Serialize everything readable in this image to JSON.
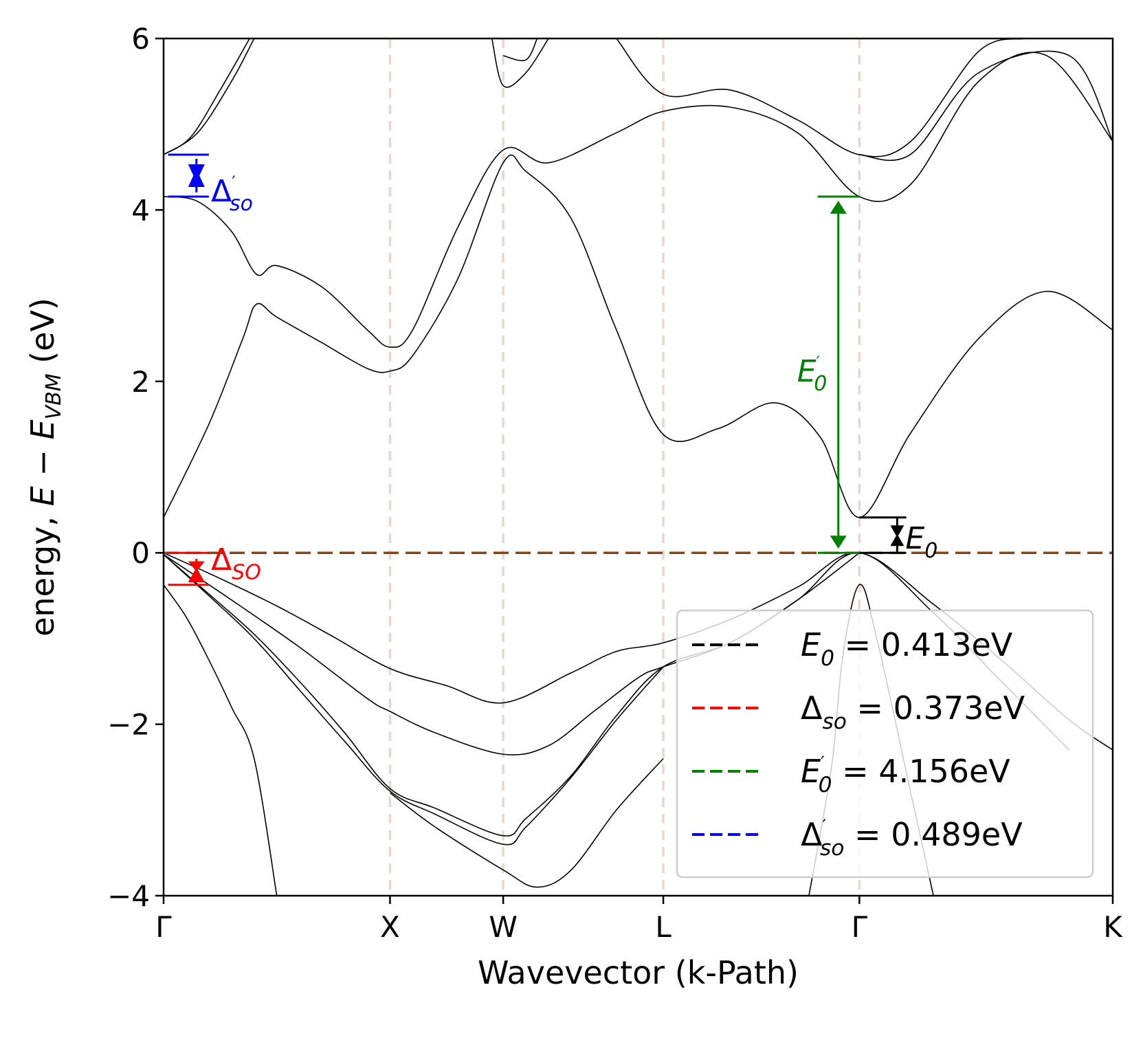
{
  "chart_data": {
    "type": "line",
    "title": "",
    "xlabel": "Wavevector (k-Path)",
    "ylabel": "energy, E − E_VBM (eV)",
    "ylabel_parts": {
      "prefix": "energy, ",
      "E": "E",
      "minus": " − ",
      "E2": "E",
      "sub": "VBM",
      "suffix": " (eV)"
    },
    "ylim": [
      -4,
      6
    ],
    "xlim": [
      0,
      4.192
    ],
    "yticks": [
      -4,
      -2,
      0,
      2,
      4,
      6
    ],
    "ytick_labels": [
      "−4",
      "−2",
      "0",
      "2",
      "4",
      "6"
    ],
    "kpoints": [
      {
        "label": "Γ",
        "x": 0.0
      },
      {
        "label": "X",
        "x": 1.0
      },
      {
        "label": "W",
        "x": 1.5
      },
      {
        "label": "L",
        "x": 2.207
      },
      {
        "label": "Γ",
        "x": 3.073
      },
      {
        "label": "K",
        "x": 4.192
      }
    ],
    "grid": false,
    "legend_placement": "lower-right",
    "legend": [
      {
        "symbol": "E",
        "sub": "0",
        "prime": false,
        "text": " = 0.413eV",
        "color": "#000000"
      },
      {
        "symbol": "Δ",
        "sub": "so",
        "prime": false,
        "text": " = 0.373eV",
        "color": "#ff0000"
      },
      {
        "symbol": "E",
        "sub": "0",
        "prime": true,
        "text": " = 4.156eV",
        "color": "#008000"
      },
      {
        "symbol": "Δ",
        "sub": "so",
        "prime": true,
        "text": " = 0.489eV",
        "color": "#0000ff"
      }
    ],
    "annotations": {
      "E0": {
        "symbol": "E",
        "sub": "0",
        "value": 0.413,
        "color": "#000000"
      },
      "delta_so": {
        "symbol": "Δ",
        "sub": "SO",
        "value": 0.373,
        "color": "#ff0000"
      },
      "E0_prime": {
        "symbol": "E",
        "sub": "0",
        "prime": "'",
        "value": 4.156,
        "color": "#008000"
      },
      "delta_so_prime": {
        "symbol": "Δ",
        "sub": "so",
        "prime": "'",
        "value": 0.489,
        "color": "#0000ff"
      }
    },
    "vbm_line": {
      "y": 0,
      "color": "#8b4513"
    },
    "kpoint_line_color": "#e8d7cf",
    "series": [
      {
        "values": [
          [
            0,
            0
          ],
          [
            0.25,
            -0.3
          ],
          [
            0.5,
            -0.62
          ],
          [
            0.75,
            -0.98
          ],
          [
            1,
            -1.35
          ],
          [
            1.25,
            -1.55
          ],
          [
            1.5,
            -1.75
          ],
          [
            1.8,
            -1.4
          ],
          [
            2.0,
            -1.15
          ],
          [
            2.207,
            -1.05
          ],
          [
            2.5,
            -0.78
          ],
          [
            2.8,
            -0.4
          ],
          [
            3.073,
            0
          ],
          [
            3.4,
            -0.6
          ],
          [
            3.7,
            -1.25
          ],
          [
            4.0,
            -1.95
          ],
          [
            4.192,
            -2.3
          ]
        ]
      },
      {
        "values": [
          [
            0,
            -0.02
          ],
          [
            0.3,
            -0.55
          ],
          [
            0.6,
            -1.1
          ],
          [
            0.9,
            -1.7
          ],
          [
            1.0,
            -1.85
          ],
          [
            1.2,
            -2.1
          ],
          [
            1.5,
            -2.35
          ],
          [
            1.7,
            -2.25
          ],
          [
            1.9,
            -1.85
          ],
          [
            2.1,
            -1.45
          ],
          [
            2.207,
            -1.33
          ],
          [
            2.5,
            -1.05
          ],
          [
            2.8,
            -0.55
          ],
          [
            3.073,
            0
          ],
          [
            3.4,
            -0.7
          ],
          [
            3.7,
            -1.5
          ],
          [
            4.0,
            -2.3
          ]
        ]
      },
      {
        "values": [
          [
            0,
            -0.02
          ],
          [
            0.2,
            -0.48
          ],
          [
            0.4,
            -0.95
          ],
          [
            0.6,
            -1.5
          ],
          [
            0.8,
            -2.1
          ],
          [
            1.0,
            -2.75
          ],
          [
            1.2,
            -2.98
          ],
          [
            1.5,
            -3.3
          ],
          [
            1.6,
            -3.1
          ],
          [
            1.8,
            -2.6
          ],
          [
            2.0,
            -1.9
          ],
          [
            2.207,
            -1.33
          ],
          [
            2.5,
            -1.05
          ],
          [
            2.8,
            -0.55
          ],
          [
            3.073,
            0
          ]
        ]
      },
      {
        "values": [
          [
            0,
            -0.02
          ],
          [
            0.2,
            -0.5
          ],
          [
            0.4,
            -1.0
          ],
          [
            0.6,
            -1.6
          ],
          [
            0.8,
            -2.2
          ],
          [
            1.0,
            -2.78
          ],
          [
            1.2,
            -3.05
          ],
          [
            1.5,
            -3.4
          ],
          [
            1.6,
            -3.2
          ],
          [
            1.8,
            -2.62
          ],
          [
            2.0,
            -1.95
          ],
          [
            2.207,
            -1.33
          ]
        ]
      },
      {
        "values": [
          [
            0,
            -0.373
          ],
          [
            0.1,
            -0.75
          ],
          [
            0.2,
            -1.25
          ],
          [
            0.3,
            -1.8
          ],
          [
            0.4,
            -2.4
          ],
          [
            0.5,
            -4.0
          ]
        ]
      },
      {
        "values": [
          [
            1.0,
            -2.8
          ],
          [
            1.2,
            -3.2
          ],
          [
            1.5,
            -3.7
          ],
          [
            1.65,
            -3.9
          ],
          [
            1.8,
            -3.7
          ],
          [
            2.0,
            -3.0
          ],
          [
            2.207,
            -2.4
          ]
        ]
      },
      {
        "values": [
          [
            2.85,
            -4.0
          ],
          [
            2.95,
            -2.5
          ],
          [
            3.0,
            -1.2
          ],
          [
            3.073,
            -0.373
          ],
          [
            3.15,
            -1.0
          ],
          [
            3.3,
            -2.8
          ],
          [
            3.4,
            -4.0
          ]
        ]
      },
      {
        "values": [
          [
            0,
            0.413
          ],
          [
            0.2,
            1.5
          ],
          [
            0.35,
            2.5
          ],
          [
            0.41,
            2.9
          ],
          [
            0.5,
            2.75
          ],
          [
            0.7,
            2.45
          ],
          [
            0.9,
            2.15
          ],
          [
            1.0,
            2.12
          ],
          [
            1.1,
            2.3
          ],
          [
            1.3,
            3.2
          ],
          [
            1.5,
            4.55
          ],
          [
            1.6,
            4.45
          ],
          [
            1.8,
            3.9
          ],
          [
            2.0,
            2.6
          ],
          [
            2.207,
            1.38
          ],
          [
            2.45,
            1.45
          ],
          [
            2.7,
            1.75
          ],
          [
            2.9,
            1.35
          ],
          [
            3.073,
            0.413
          ],
          [
            3.3,
            1.4
          ],
          [
            3.6,
            2.5
          ],
          [
            3.9,
            3.05
          ],
          [
            4.192,
            2.6
          ]
        ]
      },
      {
        "values": [
          [
            0,
            4.156
          ],
          [
            0.15,
            4.1
          ],
          [
            0.3,
            3.75
          ],
          [
            0.41,
            3.25
          ],
          [
            0.5,
            3.35
          ],
          [
            0.7,
            3.1
          ],
          [
            0.9,
            2.6
          ],
          [
            1.0,
            2.4
          ],
          [
            1.1,
            2.6
          ],
          [
            1.3,
            3.8
          ],
          [
            1.5,
            4.7
          ],
          [
            1.7,
            4.55
          ],
          [
            2.0,
            4.9
          ],
          [
            2.207,
            5.15
          ],
          [
            2.5,
            5.2
          ],
          [
            2.8,
            4.9
          ],
          [
            3.073,
            4.156
          ],
          [
            3.3,
            4.3
          ],
          [
            3.6,
            5.5
          ],
          [
            3.9,
            5.8
          ],
          [
            4.192,
            4.8
          ]
        ]
      },
      {
        "values": [
          [
            0,
            4.645
          ],
          [
            0.15,
            4.9
          ],
          [
            0.3,
            5.5
          ],
          [
            0.4,
            6.0
          ]
        ]
      },
      {
        "values": [
          [
            0,
            4.645
          ],
          [
            0.12,
            4.85
          ],
          [
            0.25,
            5.4
          ],
          [
            0.38,
            6.0
          ]
        ]
      },
      {
        "values": [
          [
            1.45,
            6.0
          ],
          [
            1.5,
            5.45
          ],
          [
            1.6,
            5.6
          ],
          [
            1.7,
            6.0
          ]
        ]
      },
      {
        "values": [
          [
            1.5,
            5.8
          ],
          [
            1.6,
            5.75
          ],
          [
            1.65,
            6.0
          ]
        ]
      },
      {
        "values": [
          [
            2.0,
            6.0
          ],
          [
            2.207,
            5.35
          ],
          [
            2.5,
            5.4
          ],
          [
            2.8,
            5.05
          ],
          [
            3.073,
            4.645
          ],
          [
            3.3,
            4.8
          ],
          [
            3.6,
            5.85
          ],
          [
            3.8,
            6.0
          ]
        ]
      },
      {
        "values": [
          [
            3.073,
            4.645
          ],
          [
            3.3,
            4.65
          ],
          [
            3.6,
            5.6
          ],
          [
            4.0,
            5.8
          ],
          [
            4.192,
            4.8
          ]
        ]
      }
    ]
  }
}
